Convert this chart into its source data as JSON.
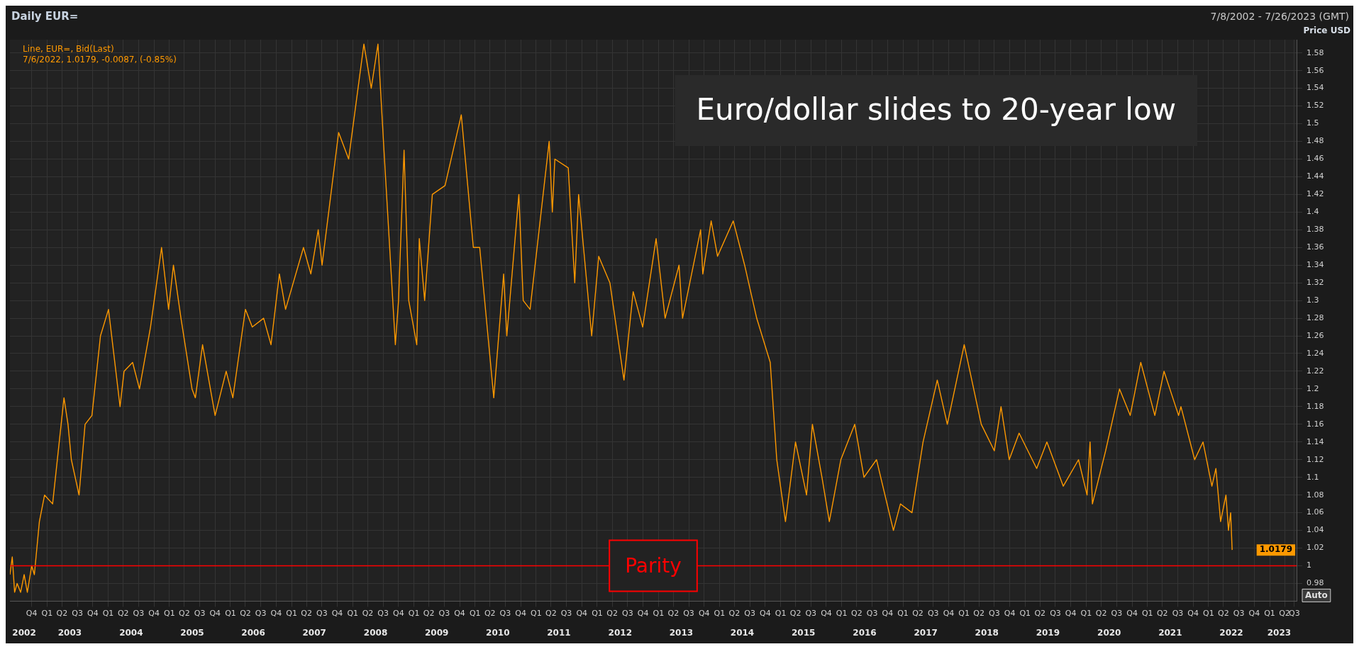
{
  "chart_data": {
    "type": "line",
    "title": "Daily EUR=",
    "subtitle": "7/8/2002 - 7/26/2023 (GMT)",
    "ylabel": "Price USD",
    "annotations": [
      "Line, EUR=, Bid(Last)",
      "7/6/2022, 1.0179, -0.0087, (-0.85%)",
      "Euro/dollar slides to 20-year low",
      "Auto",
      "1.0179"
    ],
    "x": [
      "2002-07-08",
      "2002-07-22",
      "2002-08-05",
      "2002-08-20",
      "2002-09-10",
      "2002-10-01",
      "2002-10-20",
      "2002-11-15",
      "2002-12-01",
      "2002-12-31",
      "2003-01-31",
      "2003-03-20",
      "2003-05-27",
      "2003-06-20",
      "2003-07-10",
      "2003-08-25",
      "2003-09-30",
      "2003-11-10",
      "2003-12-31",
      "2004-02-17",
      "2004-04-26",
      "2004-05-20",
      "2004-07-10",
      "2004-08-20",
      "2004-10-25",
      "2004-12-30",
      "2005-02-10",
      "2005-03-11",
      "2005-04-25",
      "2005-06-30",
      "2005-07-20",
      "2005-09-01",
      "2005-11-15",
      "2006-01-20",
      "2006-03-01",
      "2006-05-15",
      "2006-06-25",
      "2006-09-01",
      "2006-10-15",
      "2006-12-04",
      "2007-01-10",
      "2007-04-27",
      "2007-06-10",
      "2007-07-24",
      "2007-08-16",
      "2007-11-23",
      "2008-01-22",
      "2008-04-22",
      "2008-06-05",
      "2008-07-15",
      "2008-08-20",
      "2008-10-27",
      "2008-11-15",
      "2008-12-18",
      "2009-01-15",
      "2009-03-04",
      "2009-03-19",
      "2009-04-20",
      "2009-06-05",
      "2009-08-20",
      "2009-11-25",
      "2010-02-05",
      "2010-03-15",
      "2010-06-07",
      "2010-08-05",
      "2010-08-24",
      "2010-11-04",
      "2010-11-30",
      "2011-01-10",
      "2011-05-04",
      "2011-05-23",
      "2011-06-07",
      "2011-08-26",
      "2011-10-04",
      "2011-10-27",
      "2012-01-13",
      "2012-02-24",
      "2012-05-01",
      "2012-07-24",
      "2012-09-17",
      "2012-11-13",
      "2013-02-01",
      "2013-03-27",
      "2013-06-18",
      "2013-07-09",
      "2013-10-25",
      "2013-11-07",
      "2013-12-27",
      "2014-02-03",
      "2014-05-08",
      "2014-07-15",
      "2014-09-25",
      "2014-12-15",
      "2015-01-23",
      "2015-03-16",
      "2015-05-15",
      "2015-07-20",
      "2015-08-24",
      "2015-10-20",
      "2015-12-03",
      "2016-02-10",
      "2016-05-03",
      "2016-06-27",
      "2016-09-10",
      "2016-12-20",
      "2017-01-31",
      "2017-04-10",
      "2017-06-15",
      "2017-09-08",
      "2017-11-07",
      "2018-02-16",
      "2018-05-29",
      "2018-08-15",
      "2018-09-24",
      "2018-11-12",
      "2019-01-10",
      "2019-04-25",
      "2019-06-25",
      "2019-10-01",
      "2019-12-31",
      "2020-02-20",
      "2020-03-09",
      "2020-03-23",
      "2020-06-10",
      "2020-09-01",
      "2020-11-04",
      "2021-01-06",
      "2021-03-31",
      "2021-05-25",
      "2021-08-20",
      "2021-09-03",
      "2021-11-24",
      "2022-01-13",
      "2022-03-07",
      "2022-03-31",
      "2022-04-28",
      "2022-05-30",
      "2022-06-14",
      "2022-06-27",
      "2022-07-06"
    ],
    "series": [
      {
        "color": "#ff9900",
        "values": [
          0.99,
          1.01,
          0.97,
          0.98,
          0.97,
          0.99,
          0.97,
          1.0,
          0.99,
          1.05,
          1.08,
          1.07,
          1.19,
          1.16,
          1.12,
          1.08,
          1.16,
          1.17,
          1.26,
          1.29,
          1.18,
          1.22,
          1.23,
          1.2,
          1.27,
          1.36,
          1.29,
          1.34,
          1.28,
          1.2,
          1.19,
          1.25,
          1.17,
          1.22,
          1.19,
          1.29,
          1.27,
          1.28,
          1.25,
          1.33,
          1.29,
          1.36,
          1.33,
          1.38,
          1.34,
          1.49,
          1.46,
          1.59,
          1.54,
          1.59,
          1.47,
          1.25,
          1.3,
          1.47,
          1.3,
          1.25,
          1.37,
          1.3,
          1.42,
          1.43,
          1.51,
          1.36,
          1.36,
          1.19,
          1.33,
          1.26,
          1.42,
          1.3,
          1.29,
          1.48,
          1.4,
          1.46,
          1.45,
          1.32,
          1.42,
          1.26,
          1.35,
          1.32,
          1.21,
          1.31,
          1.27,
          1.37,
          1.28,
          1.34,
          1.28,
          1.38,
          1.33,
          1.39,
          1.35,
          1.39,
          1.34,
          1.28,
          1.23,
          1.12,
          1.05,
          1.14,
          1.08,
          1.16,
          1.1,
          1.05,
          1.12,
          1.16,
          1.1,
          1.12,
          1.04,
          1.07,
          1.06,
          1.14,
          1.21,
          1.16,
          1.25,
          1.16,
          1.13,
          1.18,
          1.12,
          1.15,
          1.11,
          1.14,
          1.09,
          1.12,
          1.08,
          1.14,
          1.07,
          1.13,
          1.2,
          1.17,
          1.23,
          1.17,
          1.22,
          1.17,
          1.18,
          1.12,
          1.14,
          1.09,
          1.11,
          1.05,
          1.08,
          1.04,
          1.06,
          1.0179
        ]
      }
    ],
    "xlim": [
      "2002-07-08",
      "2023-07-26"
    ],
    "xticks": [
      {
        "value": "2002-11-15",
        "label": "Q4"
      },
      {
        "value": "2003-02-15",
        "label": "Q1"
      },
      {
        "value": "2003-05-15",
        "label": "Q2"
      },
      {
        "value": "2003-08-15",
        "label": "Q3"
      },
      {
        "value": "2003-11-15",
        "label": "Q4"
      },
      {
        "value": "2004-02-15",
        "label": "Q1"
      },
      {
        "value": "2004-05-15",
        "label": "Q2"
      },
      {
        "value": "2004-08-15",
        "label": "Q3"
      },
      {
        "value": "2004-11-15",
        "label": "Q4"
      },
      {
        "value": "2005-02-15",
        "label": "Q1"
      },
      {
        "value": "2005-05-15",
        "label": "Q2"
      },
      {
        "value": "2005-08-15",
        "label": "Q3"
      },
      {
        "value": "2005-11-15",
        "label": "Q4"
      },
      {
        "value": "2006-02-15",
        "label": "Q1"
      },
      {
        "value": "2006-05-15",
        "label": "Q2"
      },
      {
        "value": "2006-08-15",
        "label": "Q3"
      },
      {
        "value": "2006-11-15",
        "label": "Q4"
      },
      {
        "value": "2007-02-15",
        "label": "Q1"
      },
      {
        "value": "2007-05-15",
        "label": "Q2"
      },
      {
        "value": "2007-08-15",
        "label": "Q3"
      },
      {
        "value": "2007-11-15",
        "label": "Q4"
      },
      {
        "value": "2008-02-15",
        "label": "Q1"
      },
      {
        "value": "2008-05-15",
        "label": "Q2"
      },
      {
        "value": "2008-08-15",
        "label": "Q3"
      },
      {
        "value": "2008-11-15",
        "label": "Q4"
      },
      {
        "value": "2009-02-15",
        "label": "Q1"
      },
      {
        "value": "2009-05-15",
        "label": "Q2"
      },
      {
        "value": "2009-08-15",
        "label": "Q3"
      },
      {
        "value": "2009-11-15",
        "label": "Q4"
      },
      {
        "value": "2010-02-15",
        "label": "Q1"
      },
      {
        "value": "2010-05-15",
        "label": "Q2"
      },
      {
        "value": "2010-08-15",
        "label": "Q3"
      },
      {
        "value": "2010-11-15",
        "label": "Q4"
      },
      {
        "value": "2011-02-15",
        "label": "Q1"
      },
      {
        "value": "2011-05-15",
        "label": "Q2"
      },
      {
        "value": "2011-08-15",
        "label": "Q3"
      },
      {
        "value": "2011-11-15",
        "label": "Q4"
      },
      {
        "value": "2012-02-15",
        "label": "Q1"
      },
      {
        "value": "2012-05-15",
        "label": "Q2"
      },
      {
        "value": "2012-08-15",
        "label": "Q3"
      },
      {
        "value": "2012-11-15",
        "label": "Q4"
      },
      {
        "value": "2013-02-15",
        "label": "Q1"
      },
      {
        "value": "2013-05-15",
        "label": "Q2"
      },
      {
        "value": "2013-08-15",
        "label": "Q3"
      },
      {
        "value": "2013-11-15",
        "label": "Q4"
      },
      {
        "value": "2014-02-15",
        "label": "Q1"
      },
      {
        "value": "2014-05-15",
        "label": "Q2"
      },
      {
        "value": "2014-08-15",
        "label": "Q3"
      },
      {
        "value": "2014-11-15",
        "label": "Q4"
      },
      {
        "value": "2015-02-15",
        "label": "Q1"
      },
      {
        "value": "2015-05-15",
        "label": "Q2"
      },
      {
        "value": "2015-08-15",
        "label": "Q3"
      },
      {
        "value": "2015-11-15",
        "label": "Q4"
      },
      {
        "value": "2016-02-15",
        "label": "Q1"
      },
      {
        "value": "2016-05-15",
        "label": "Q2"
      },
      {
        "value": "2016-08-15",
        "label": "Q3"
      },
      {
        "value": "2016-11-15",
        "label": "Q4"
      },
      {
        "value": "2017-02-15",
        "label": "Q1"
      },
      {
        "value": "2017-05-15",
        "label": "Q2"
      },
      {
        "value": "2017-08-15",
        "label": "Q3"
      },
      {
        "value": "2017-11-15",
        "label": "Q4"
      },
      {
        "value": "2018-02-15",
        "label": "Q1"
      },
      {
        "value": "2018-05-15",
        "label": "Q2"
      },
      {
        "value": "2018-08-15",
        "label": "Q3"
      },
      {
        "value": "2018-11-15",
        "label": "Q4"
      },
      {
        "value": "2019-02-15",
        "label": "Q1"
      },
      {
        "value": "2019-05-15",
        "label": "Q2"
      },
      {
        "value": "2019-08-15",
        "label": "Q3"
      },
      {
        "value": "2019-11-15",
        "label": "Q4"
      },
      {
        "value": "2020-02-15",
        "label": "Q1"
      },
      {
        "value": "2020-05-15",
        "label": "Q2"
      },
      {
        "value": "2020-08-15",
        "label": "Q3"
      },
      {
        "value": "2020-11-15",
        "label": "Q4"
      },
      {
        "value": "2021-02-15",
        "label": "Q1"
      },
      {
        "value": "2021-05-15",
        "label": "Q2"
      },
      {
        "value": "2021-08-15",
        "label": "Q3"
      },
      {
        "value": "2021-11-15",
        "label": "Q4"
      },
      {
        "value": "2022-02-15",
        "label": "Q1"
      },
      {
        "value": "2022-05-15",
        "label": "Q2"
      },
      {
        "value": "2022-08-15",
        "label": "Q3"
      },
      {
        "value": "2022-11-15",
        "label": "Q4"
      },
      {
        "value": "2023-02-15",
        "label": "Q1"
      },
      {
        "value": "2023-05-15",
        "label": "Q2"
      },
      {
        "value": "2023-07-13",
        "label": "Q3"
      }
    ],
    "x2lim": [
      "2002-07-08",
      "2023-07-26"
    ],
    "x2ticks": [
      {
        "value": "2002-10-01",
        "label": "2002"
      },
      {
        "value": "2003-07-01",
        "label": "2003"
      },
      {
        "value": "2004-07-01",
        "label": "2004"
      },
      {
        "value": "2005-07-01",
        "label": "2005"
      },
      {
        "value": "2006-07-01",
        "label": "2006"
      },
      {
        "value": "2007-07-01",
        "label": "2007"
      },
      {
        "value": "2008-07-01",
        "label": "2008"
      },
      {
        "value": "2009-07-01",
        "label": "2009"
      },
      {
        "value": "2010-07-01",
        "label": "2010"
      },
      {
        "value": "2011-07-01",
        "label": "2011"
      },
      {
        "value": "2012-07-01",
        "label": "2012"
      },
      {
        "value": "2013-07-01",
        "label": "2013"
      },
      {
        "value": "2014-07-01",
        "label": "2014"
      },
      {
        "value": "2015-07-01",
        "label": "2015"
      },
      {
        "value": "2016-07-01",
        "label": "2016"
      },
      {
        "value": "2017-07-01",
        "label": "2017"
      },
      {
        "value": "2018-07-01",
        "label": "2018"
      },
      {
        "value": "2019-07-01",
        "label": "2019"
      },
      {
        "value": "2020-07-01",
        "label": "2020"
      },
      {
        "value": "2021-07-01",
        "label": "2021"
      },
      {
        "value": "2022-07-01",
        "label": "2022"
      },
      {
        "value": "2023-04-13",
        "label": "2023"
      }
    ],
    "ylim": [
      0.96,
      1.595
    ],
    "yticks": [
      0.98,
      1,
      1.02,
      1.04,
      1.06,
      1.08,
      1.1,
      1.12,
      1.14,
      1.16,
      1.18,
      1.2,
      1.22,
      1.24,
      1.26,
      1.28,
      1.3,
      1.32,
      1.34,
      1.36,
      1.38,
      1.4,
      1.42,
      1.44,
      1.46,
      1.48,
      1.5,
      1.52,
      1.54,
      1.56,
      1.58
    ],
    "ref_lines": [
      {
        "axis": "y",
        "value": 1,
        "label": "Parity",
        "color": "#ff0000"
      }
    ],
    "grid": true,
    "legend": false,
    "marker": "none",
    "line_style": "solid"
  }
}
